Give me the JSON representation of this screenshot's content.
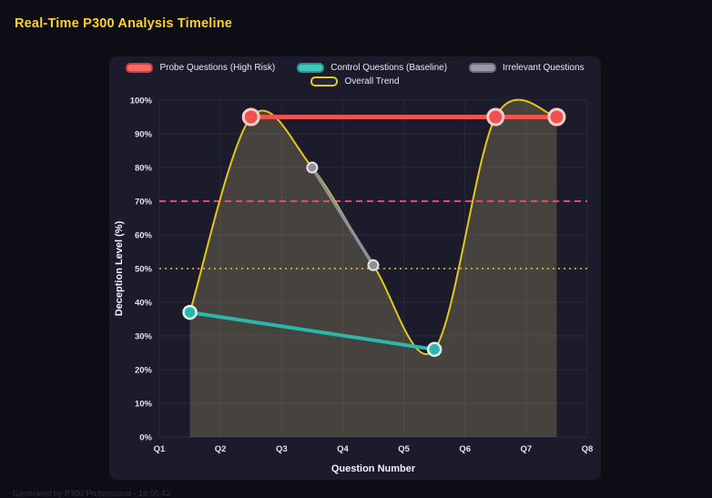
{
  "page": {
    "title": "Real-Time P300 Analysis Timeline",
    "footer": "Generated by P300 Professional - 18:05:42"
  },
  "chart_data": {
    "type": "line",
    "title": "Real-Time P300 Analysis Timeline",
    "xlabel": "Question Number",
    "ylabel": "Deception Level (%)",
    "xlim": [
      1,
      8
    ],
    "ylim": [
      0,
      100
    ],
    "grid": true,
    "legend_position": "top",
    "x_ticks": [
      {
        "label": "Q1",
        "value": 1
      },
      {
        "label": "Q2",
        "value": 2
      },
      {
        "label": "Q3",
        "value": 3
      },
      {
        "label": "Q4",
        "value": 4
      },
      {
        "label": "Q5",
        "value": 5
      },
      {
        "label": "Q6",
        "value": 6
      },
      {
        "label": "Q7",
        "value": 7
      },
      {
        "label": "Q8",
        "value": 8
      }
    ],
    "y_ticks": [
      {
        "label": "0%",
        "value": 0
      },
      {
        "label": "10%",
        "value": 10
      },
      {
        "label": "20%",
        "value": 20
      },
      {
        "label": "30%",
        "value": 30
      },
      {
        "label": "40%",
        "value": 40
      },
      {
        "label": "50%",
        "value": 50
      },
      {
        "label": "60%",
        "value": 60
      },
      {
        "label": "70%",
        "value": 70
      },
      {
        "label": "80%",
        "value": 80
      },
      {
        "label": "90%",
        "value": 90
      },
      {
        "label": "100%",
        "value": 100
      }
    ],
    "thresholds": [
      {
        "name": "high-risk-threshold",
        "value": 70,
        "color": "#f0426e",
        "dash": "7 5",
        "width": 2
      },
      {
        "name": "baseline-threshold",
        "value": 50,
        "color": "#e3c71d",
        "dash": "2 4",
        "width": 1.6
      }
    ],
    "series": [
      {
        "name": "Probe Questions (High Risk)",
        "color": "#ef5350",
        "line_width": 5,
        "smooth": false,
        "marker": {
          "radius": 8.5,
          "fill": "#ef5350",
          "stroke": "#f9cdc9",
          "stroke_width": 3
        },
        "legend_marker": {
          "fill": "#f36a66",
          "stroke": "#d63a3a"
        },
        "x": [
          2.5,
          6.5,
          7.5
        ],
        "values": [
          95,
          95,
          95
        ]
      },
      {
        "name": "Control Questions (Baseline)",
        "color": "#2bb8aa",
        "line_width": 4,
        "smooth": false,
        "marker": {
          "radius": 7,
          "fill": "#2bb8aa",
          "stroke": "#dff5f2",
          "stroke_width": 2.5
        },
        "legend_marker": {
          "fill": "#3ec9bb",
          "stroke": "#1e9a8d"
        },
        "x": [
          1.5,
          5.5
        ],
        "values": [
          37,
          26
        ]
      },
      {
        "name": "Irrelevant Questions",
        "color": "#90909b",
        "line_width": 3.5,
        "smooth": false,
        "marker": {
          "radius": 5.5,
          "fill": "#90909b",
          "stroke": "#e4e4ea",
          "stroke_width": 2
        },
        "legend_marker": {
          "fill": "#9a9aa4",
          "stroke": "#6e6e78"
        },
        "x": [
          3.5,
          4.5
        ],
        "values": [
          80,
          51
        ]
      },
      {
        "name": "Overall Trend",
        "color": "#e3c71d",
        "line_width": 2,
        "smooth": true,
        "area": true,
        "area_fill": "rgba(223,206,126,0.22)",
        "marker": {
          "radius": 0
        },
        "legend_marker": {
          "fill": "#242433",
          "stroke": "#e3c71d"
        },
        "x": [
          1.5,
          2.5,
          3.5,
          4.5,
          5.5,
          6.5,
          7.5
        ],
        "values": [
          37,
          95,
          80,
          51,
          26,
          95,
          95
        ]
      }
    ]
  }
}
